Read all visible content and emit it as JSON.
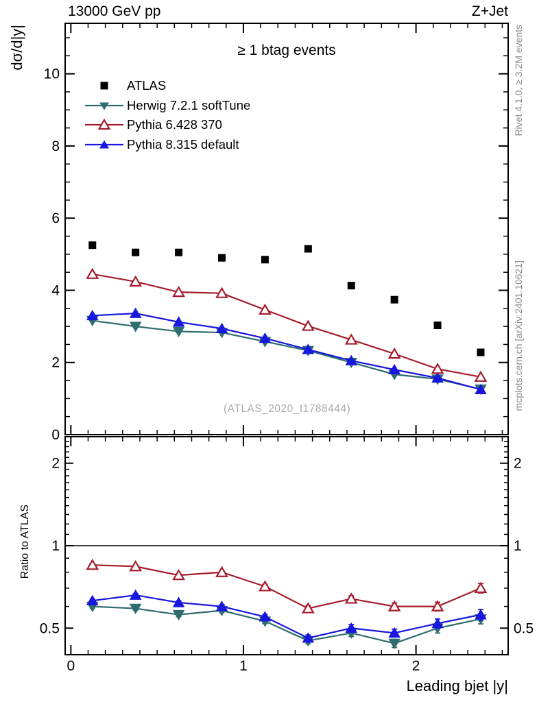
{
  "chart_data": {
    "type": "line",
    "top_left_label": "13000 GeV pp",
    "top_right_label": "Z+Jet",
    "title": "≥ 1 btag events",
    "xlabel": "Leading bjet |y|",
    "ylabel_main": "dσ/d|y|",
    "ylabel_ratio": "Ratio to ATLAS",
    "watermark": "(ATLAS_2020_I1788444)",
    "side_note_top": "Rivet 4.1.0, ≥ 3.2M events",
    "side_note_bottom": "mcplots.cern.ch [arXiv:2401.10621]",
    "x": [
      0.125,
      0.375,
      0.625,
      0.875,
      1.125,
      1.375,
      1.625,
      1.875,
      2.125,
      2.375
    ],
    "bin_width": 0.25,
    "series": [
      {
        "name": "ATLAS",
        "color": "#000000",
        "marker": "square",
        "marker_open": false,
        "line": false,
        "values": [
          5.25,
          5.05,
          5.05,
          4.9,
          4.85,
          5.15,
          4.13,
          3.74,
          3.03,
          2.28
        ]
      },
      {
        "name": "Herwig 7.2.1 softTune",
        "color": "#2e6c6e",
        "marker": "triangle-down",
        "marker_open": false,
        "line": true,
        "values": [
          3.16,
          3.0,
          2.86,
          2.83,
          2.58,
          2.33,
          2.0,
          1.67,
          1.54,
          1.26
        ],
        "ratio": [
          0.6,
          0.59,
          0.56,
          0.58,
          0.53,
          0.45,
          0.48,
          0.44,
          0.5,
          0.54
        ],
        "ratio_err": [
          0.008,
          0.008,
          0.009,
          0.009,
          0.01,
          0.012,
          0.014,
          0.015,
          0.02,
          0.022
        ]
      },
      {
        "name": "Pythia 6.428 370",
        "color": "#a51d2d",
        "marker": "triangle-up",
        "marker_open": true,
        "line": true,
        "values": [
          4.45,
          4.24,
          3.95,
          3.92,
          3.46,
          3.01,
          2.63,
          2.24,
          1.82,
          1.6
        ],
        "ratio": [
          0.85,
          0.84,
          0.78,
          0.8,
          0.71,
          0.59,
          0.64,
          0.6,
          0.6,
          0.7
        ],
        "ratio_err": [
          0.01,
          0.01,
          0.01,
          0.01,
          0.012,
          0.014,
          0.016,
          0.018,
          0.022,
          0.028
        ]
      },
      {
        "name": "Pythia 8.315 default",
        "color": "#1717dd",
        "marker": "triangle-up",
        "marker_open": false,
        "line": true,
        "values": [
          3.3,
          3.36,
          3.12,
          2.94,
          2.67,
          2.36,
          2.05,
          1.8,
          1.57,
          1.25
        ],
        "ratio": [
          0.63,
          0.66,
          0.62,
          0.6,
          0.55,
          0.46,
          0.5,
          0.48,
          0.52,
          0.56
        ],
        "ratio_err": [
          0.008,
          0.008,
          0.009,
          0.009,
          0.01,
          0.012,
          0.015,
          0.016,
          0.02,
          0.025
        ]
      }
    ],
    "axes": {
      "x": {
        "lim": [
          -0.033,
          2.534
        ],
        "major": [
          {
            "v": 0,
            "label": "0"
          },
          {
            "v": 1,
            "label": "1"
          },
          {
            "v": 2,
            "label": "2"
          }
        ],
        "minor_step": 0.1
      },
      "y_main": {
        "lim": [
          0,
          11.4
        ],
        "major": [
          {
            "v": 0,
            "label": "0"
          },
          {
            "v": 2,
            "label": "2"
          },
          {
            "v": 4,
            "label": "4"
          },
          {
            "v": 6,
            "label": "6"
          },
          {
            "v": 8,
            "label": "8"
          },
          {
            "v": 10,
            "label": "10"
          }
        ],
        "minor_step": 0.5
      },
      "y_ratio": {
        "scale": "log",
        "lim": [
          0.4,
          2.5
        ],
        "major": [
          {
            "v": 0.5,
            "label": "0.5"
          },
          {
            "v": 1,
            "label": "1"
          },
          {
            "v": 2,
            "label": "2"
          }
        ],
        "minor": [
          0.6,
          0.7,
          0.8,
          0.9,
          1.1,
          1.2,
          1.3,
          1.4,
          1.5,
          1.6,
          1.7,
          1.8,
          1.9,
          2.1,
          2.2,
          2.3,
          2.4
        ]
      }
    },
    "ratio_reference": 1,
    "grid": false,
    "legend_position": "top-left"
  },
  "colors": {
    "frame": "#000000",
    "text": "#000000",
    "muted_text": "#8a8a8a",
    "watermark_text": "#aaaaaa"
  }
}
